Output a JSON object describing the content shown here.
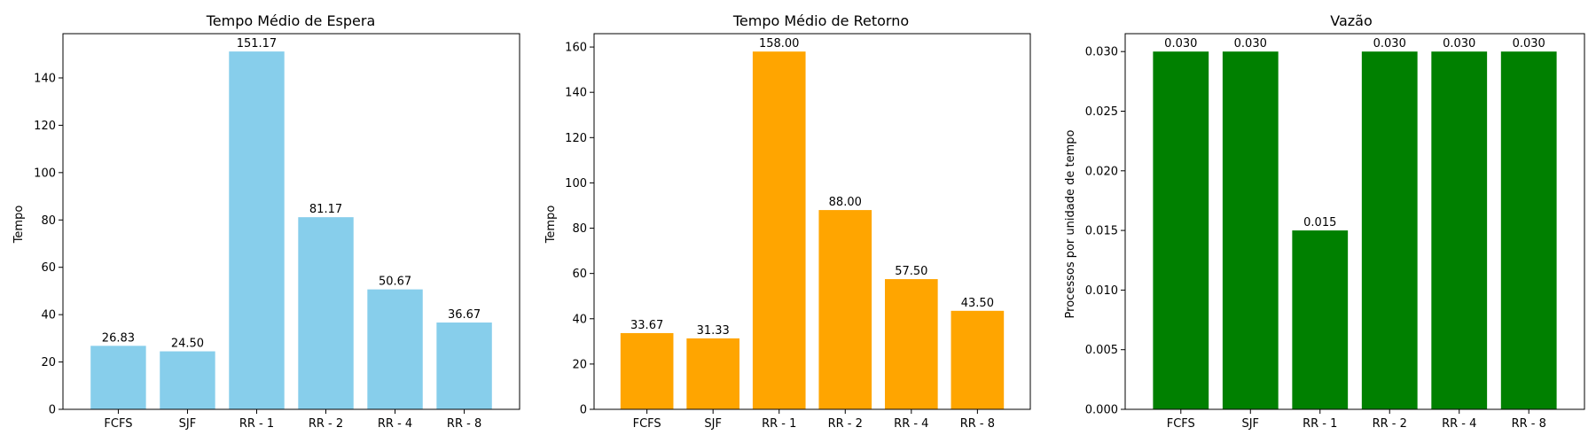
{
  "chart_data": [
    {
      "type": "bar",
      "title": "Tempo Médio de Espera",
      "xlabel": "",
      "ylabel": "Tempo",
      "categories": [
        "FCFS",
        "SJF",
        "RR - 1",
        "RR - 2",
        "RR - 4",
        "RR - 8"
      ],
      "values": [
        26.83,
        24.5,
        151.17,
        81.17,
        50.67,
        36.67
      ],
      "value_labels": [
        "26.83",
        "24.50",
        "151.17",
        "81.17",
        "50.67",
        "36.67"
      ],
      "yticks": [
        0,
        20,
        40,
        60,
        80,
        100,
        120,
        140
      ],
      "ytick_labels": [
        "0",
        "20",
        "40",
        "60",
        "80",
        "100",
        "120",
        "140"
      ],
      "ylim": [
        0,
        158.7
      ],
      "color": "#87CEEB",
      "grid": false
    },
    {
      "type": "bar",
      "title": "Tempo Médio de Retorno",
      "xlabel": "",
      "ylabel": "Tempo",
      "categories": [
        "FCFS",
        "SJF",
        "RR - 1",
        "RR - 2",
        "RR - 4",
        "RR - 8"
      ],
      "values": [
        33.67,
        31.33,
        158.0,
        88.0,
        57.5,
        43.5
      ],
      "value_labels": [
        "33.67",
        "31.33",
        "158.00",
        "88.00",
        "57.50",
        "43.50"
      ],
      "yticks": [
        0,
        20,
        40,
        60,
        80,
        100,
        120,
        140,
        160
      ],
      "ytick_labels": [
        "0",
        "20",
        "40",
        "60",
        "80",
        "100",
        "120",
        "140",
        "160"
      ],
      "ylim": [
        0,
        165.9
      ],
      "color": "#FFA500",
      "grid": false
    },
    {
      "type": "bar",
      "title": "Vazão",
      "xlabel": "",
      "ylabel": "Processos por unidade de tempo",
      "categories": [
        "FCFS",
        "SJF",
        "RR - 1",
        "RR - 2",
        "RR - 4",
        "RR - 8"
      ],
      "values": [
        0.03,
        0.03,
        0.015,
        0.03,
        0.03,
        0.03
      ],
      "value_labels": [
        "0.030",
        "0.030",
        "0.015",
        "0.030",
        "0.030",
        "0.030"
      ],
      "yticks": [
        0,
        0.005,
        0.01,
        0.015,
        0.02,
        0.025,
        0.03
      ],
      "ytick_labels": [
        "0.000",
        "0.005",
        "0.010",
        "0.015",
        "0.020",
        "0.025",
        "0.030"
      ],
      "ylim": [
        0,
        0.0315
      ],
      "color": "#008000",
      "grid": false
    }
  ]
}
